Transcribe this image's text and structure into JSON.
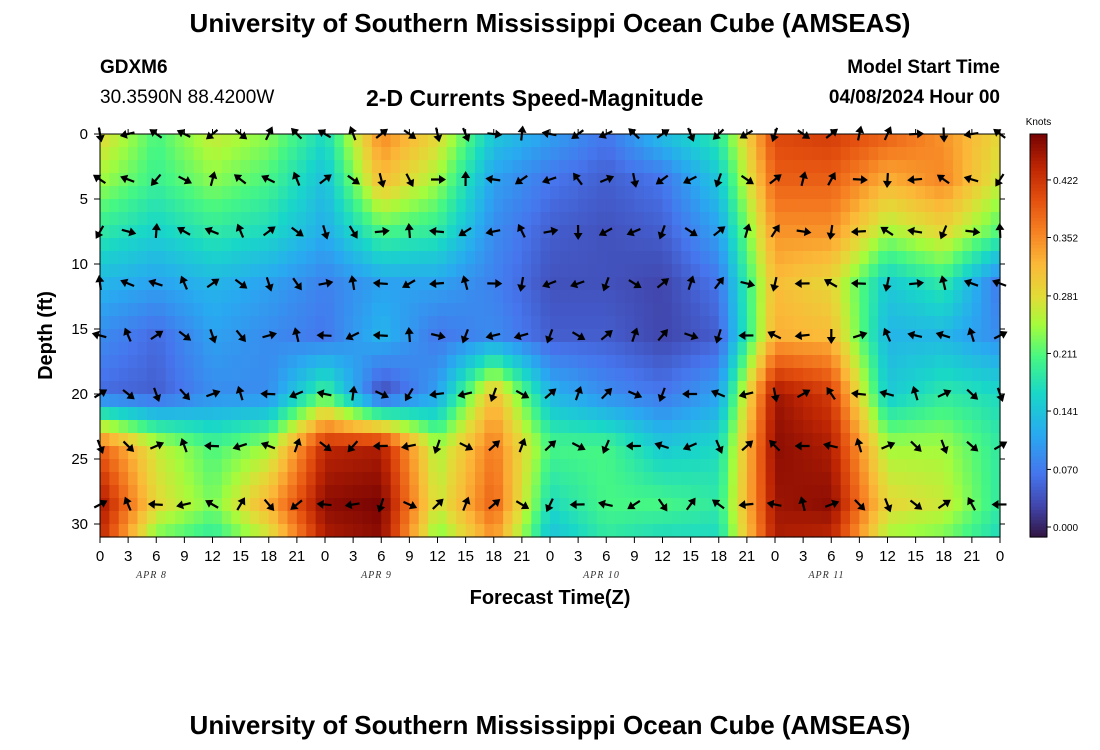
{
  "header": {
    "title": "University of Southern Mississippi Ocean Cube (AMSEAS)",
    "station": "GDXM6",
    "coords": "30.3590N  88.4200W",
    "plot_title": "2-D Currents Speed-Magnitude",
    "model_start_label": "Model Start Time",
    "model_start_value": "04/08/2024 Hour 00"
  },
  "footer": {
    "title": "University of Southern Mississippi Ocean Cube (AMSEAS)"
  },
  "chart_data": {
    "type": "heatmap",
    "xlabel": "Forecast Time(Z)",
    "ylabel": "Depth (ft)",
    "x_ticks": [
      "0",
      "3",
      "6",
      "9",
      "12",
      "15",
      "18",
      "21",
      "0",
      "3",
      "6",
      "9",
      "12",
      "15",
      "18",
      "21",
      "0",
      "3",
      "6",
      "9",
      "12",
      "15",
      "18",
      "21",
      "0",
      "3",
      "6",
      "9",
      "12",
      "15",
      "18",
      "21",
      "0"
    ],
    "x_hours_range": [
      0,
      96
    ],
    "date_labels": [
      {
        "hour": 4,
        "text": "APR 8"
      },
      {
        "hour": 28,
        "text": "APR 9"
      },
      {
        "hour": 52,
        "text": "APR 10"
      },
      {
        "hour": 76,
        "text": "APR 11"
      }
    ],
    "y_ticks": [
      0,
      5,
      10,
      15,
      20,
      25,
      30
    ],
    "ylim": [
      0,
      31
    ],
    "colorbar": {
      "units": "Knots",
      "ticks": [
        "0.422",
        "0.352",
        "0.281",
        "0.211",
        "0.141",
        "0.070",
        "0.000"
      ],
      "range": [
        0.0,
        0.49
      ]
    },
    "arrow_depths": [
      0,
      3.5,
      7.5,
      11.5,
      15.5,
      20,
      24,
      28.5
    ],
    "speed_grid_depths": [
      0,
      3.5,
      7.5,
      11.5,
      15.5,
      20,
      24,
      28.5,
      31
    ],
    "speed_grid_hours": [
      0,
      6,
      12,
      18,
      24,
      30,
      36,
      42,
      48,
      54,
      60,
      66,
      72,
      78,
      84,
      90,
      96
    ],
    "speed_grid_knots": [
      [
        0.3,
        0.22,
        0.28,
        0.25,
        0.18,
        0.37,
        0.3,
        0.16,
        0.12,
        0.08,
        0.15,
        0.2,
        0.42,
        0.43,
        0.4,
        0.36,
        0.3
      ],
      [
        0.26,
        0.21,
        0.25,
        0.22,
        0.15,
        0.33,
        0.26,
        0.12,
        0.08,
        0.06,
        0.08,
        0.16,
        0.4,
        0.4,
        0.34,
        0.37,
        0.28
      ],
      [
        0.2,
        0.17,
        0.2,
        0.18,
        0.13,
        0.22,
        0.2,
        0.1,
        0.06,
        0.05,
        0.06,
        0.12,
        0.36,
        0.36,
        0.26,
        0.3,
        0.22
      ],
      [
        0.14,
        0.12,
        0.14,
        0.12,
        0.09,
        0.12,
        0.12,
        0.09,
        0.05,
        0.05,
        0.04,
        0.08,
        0.33,
        0.3,
        0.16,
        0.2,
        0.08
      ],
      [
        0.1,
        0.07,
        0.12,
        0.1,
        0.08,
        0.14,
        0.08,
        0.1,
        0.06,
        0.06,
        0.04,
        0.06,
        0.34,
        0.33,
        0.14,
        0.14,
        0.1
      ],
      [
        0.07,
        0.06,
        0.1,
        0.1,
        0.22,
        0.04,
        0.12,
        0.33,
        0.14,
        0.1,
        0.08,
        0.12,
        0.47,
        0.43,
        0.16,
        0.2,
        0.18
      ],
      [
        0.4,
        0.28,
        0.22,
        0.26,
        0.45,
        0.46,
        0.26,
        0.38,
        0.22,
        0.22,
        0.16,
        0.18,
        0.48,
        0.46,
        0.26,
        0.26,
        0.2
      ],
      [
        0.47,
        0.3,
        0.24,
        0.34,
        0.48,
        0.49,
        0.28,
        0.4,
        0.18,
        0.22,
        0.22,
        0.2,
        0.47,
        0.48,
        0.3,
        0.28,
        0.2
      ],
      [
        0.45,
        0.24,
        0.2,
        0.28,
        0.46,
        0.48,
        0.24,
        0.36,
        0.15,
        0.2,
        0.18,
        0.18,
        0.46,
        0.45,
        0.26,
        0.24,
        0.18
      ]
    ]
  }
}
